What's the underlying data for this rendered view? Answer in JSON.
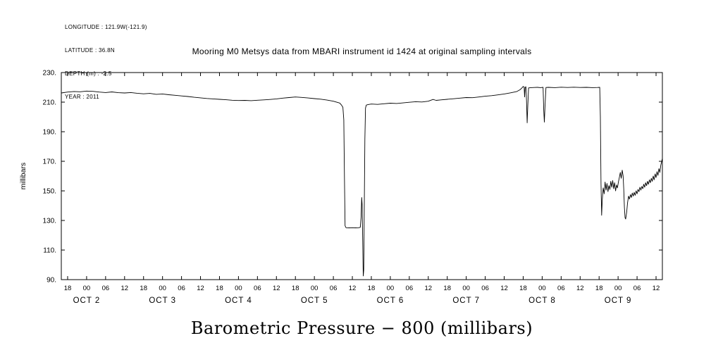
{
  "page": {
    "background": "#ffffff",
    "foreground": "#000000"
  },
  "metadata": {
    "lines": [
      "LONGITUDE : 121.9W(-121.9)",
      "LATITUDE : 36.8N",
      "DEPTH (m) : -2.5",
      "YEAR : 2011"
    ]
  },
  "title": "Mooring M0 Metsys data from MBARI instrument id 1424 at original sampling intervals",
  "chart_data": {
    "type": "line",
    "title": "Mooring M0 Metsys data from MBARI instrument id 1424 at original sampling intervals",
    "bottom_title": "Barometric Pressure − 800 (millibars)",
    "ylabel": "millibars",
    "x_unit": "hours since OCT 1 2011 16:00",
    "xlim": [
      0,
      190
    ],
    "ylim": [
      90,
      230
    ],
    "grid": false,
    "legend": null,
    "axis_color": "#000000",
    "line_color": "#000000",
    "y_ticks": [
      {
        "v": 90,
        "label": "90."
      },
      {
        "v": 110,
        "label": "110."
      },
      {
        "v": 130,
        "label": "130."
      },
      {
        "v": 150,
        "label": "150."
      },
      {
        "v": 170,
        "label": "170."
      },
      {
        "v": 190,
        "label": "190."
      },
      {
        "v": 210,
        "label": "210."
      },
      {
        "v": 230,
        "label": "230."
      }
    ],
    "x_ticks": [
      {
        "t": 2,
        "label": "18"
      },
      {
        "t": 8,
        "label": "00"
      },
      {
        "t": 14,
        "label": "06"
      },
      {
        "t": 20,
        "label": "12"
      },
      {
        "t": 26,
        "label": "18"
      },
      {
        "t": 32,
        "label": "00"
      },
      {
        "t": 38,
        "label": "06"
      },
      {
        "t": 44,
        "label": "12"
      },
      {
        "t": 50,
        "label": "18"
      },
      {
        "t": 56,
        "label": "00"
      },
      {
        "t": 62,
        "label": "06"
      },
      {
        "t": 68,
        "label": "12"
      },
      {
        "t": 74,
        "label": "18"
      },
      {
        "t": 80,
        "label": "00"
      },
      {
        "t": 86,
        "label": "06"
      },
      {
        "t": 92,
        "label": "12"
      },
      {
        "t": 98,
        "label": "18"
      },
      {
        "t": 104,
        "label": "00"
      },
      {
        "t": 110,
        "label": "06"
      },
      {
        "t": 116,
        "label": "12"
      },
      {
        "t": 122,
        "label": "18"
      },
      {
        "t": 128,
        "label": "00"
      },
      {
        "t": 134,
        "label": "06"
      },
      {
        "t": 140,
        "label": "12"
      },
      {
        "t": 146,
        "label": "18"
      },
      {
        "t": 152,
        "label": "00"
      },
      {
        "t": 158,
        "label": "06"
      },
      {
        "t": 164,
        "label": "12"
      },
      {
        "t": 170,
        "label": "18"
      },
      {
        "t": 176,
        "label": "00"
      },
      {
        "t": 182,
        "label": "06"
      },
      {
        "t": 188,
        "label": "12"
      }
    ],
    "x_date_labels": [
      {
        "t": 8,
        "label": "OCT 2"
      },
      {
        "t": 32,
        "label": "OCT 3"
      },
      {
        "t": 56,
        "label": "OCT 4"
      },
      {
        "t": 80,
        "label": "OCT 5"
      },
      {
        "t": 104,
        "label": "OCT 6"
      },
      {
        "t": 128,
        "label": "OCT 7"
      },
      {
        "t": 152,
        "label": "OCT 8"
      },
      {
        "t": 176,
        "label": "OCT 9"
      }
    ],
    "series": [
      {
        "name": "barometric_pressure_minus_800",
        "points": [
          [
            0,
            216.2
          ],
          [
            2,
            216.8
          ],
          [
            4,
            217.2
          ],
          [
            6,
            217.0
          ],
          [
            8,
            217.5
          ],
          [
            10,
            217.3
          ],
          [
            12,
            216.8
          ],
          [
            14,
            216.5
          ],
          [
            16,
            216.9
          ],
          [
            18,
            216.4
          ],
          [
            20,
            216.2
          ],
          [
            22,
            216.5
          ],
          [
            24,
            216.0
          ],
          [
            26,
            215.6
          ],
          [
            28,
            215.9
          ],
          [
            30,
            215.3
          ],
          [
            32,
            215.5
          ],
          [
            34,
            215.0
          ],
          [
            36,
            214.6
          ],
          [
            38,
            214.2
          ],
          [
            40,
            213.8
          ],
          [
            42,
            213.3
          ],
          [
            44,
            212.9
          ],
          [
            46,
            212.5
          ],
          [
            48,
            212.2
          ],
          [
            50,
            211.9
          ],
          [
            52,
            211.6
          ],
          [
            54,
            211.3
          ],
          [
            56,
            211.1
          ],
          [
            58,
            211.2
          ],
          [
            60,
            211.0
          ],
          [
            62,
            211.3
          ],
          [
            64,
            211.5
          ],
          [
            66,
            211.8
          ],
          [
            68,
            212.2
          ],
          [
            70,
            212.7
          ],
          [
            72,
            213.1
          ],
          [
            74,
            213.5
          ],
          [
            76,
            213.2
          ],
          [
            78,
            212.8
          ],
          [
            80,
            212.4
          ],
          [
            82,
            212.0
          ],
          [
            84,
            211.4
          ],
          [
            86,
            210.6
          ],
          [
            88,
            209.4
          ],
          [
            88.5,
            208.2
          ],
          [
            89.0,
            206.5
          ],
          [
            89.3,
            198.0
          ],
          [
            89.5,
            160.0
          ],
          [
            89.7,
            126.5
          ],
          [
            90.0,
            125.1
          ],
          [
            91,
            125.0
          ],
          [
            92,
            125.1
          ],
          [
            93,
            125.0
          ],
          [
            94,
            125.1
          ],
          [
            94.5,
            125.4
          ],
          [
            94.75,
            132.0
          ],
          [
            94.95,
            145.5
          ],
          [
            95.1,
            141.0
          ],
          [
            95.25,
            120.0
          ],
          [
            95.45,
            92.5
          ],
          [
            95.6,
            96.5
          ],
          [
            95.75,
            135.0
          ],
          [
            95.95,
            185.0
          ],
          [
            96.15,
            206.0
          ],
          [
            96.4,
            208.0
          ],
          [
            97,
            208.4
          ],
          [
            98,
            208.7
          ],
          [
            100,
            208.5
          ],
          [
            102,
            208.9
          ],
          [
            104,
            209.3
          ],
          [
            106,
            209.1
          ],
          [
            108,
            209.5
          ],
          [
            110,
            209.9
          ],
          [
            112,
            210.3
          ],
          [
            114,
            210.1
          ],
          [
            116,
            210.6
          ],
          [
            117.5,
            211.8
          ],
          [
            118.5,
            211.2
          ],
          [
            120,
            211.5
          ],
          [
            122,
            211.9
          ],
          [
            124,
            212.3
          ],
          [
            126,
            212.7
          ],
          [
            128,
            213.1
          ],
          [
            130,
            213.0
          ],
          [
            132,
            213.5
          ],
          [
            134,
            214.0
          ],
          [
            136,
            214.4
          ],
          [
            138,
            214.9
          ],
          [
            140,
            215.5
          ],
          [
            142,
            216.3
          ],
          [
            144,
            217.2
          ],
          [
            145,
            218.4
          ],
          [
            145.6,
            219.6
          ],
          [
            146.0,
            220.6
          ],
          [
            146.3,
            220.2
          ],
          [
            146.45,
            213.5
          ],
          [
            146.6,
            220.0
          ],
          [
            146.85,
            220.4
          ],
          [
            147.05,
            211.0
          ],
          [
            147.25,
            196.0
          ],
          [
            147.45,
            207.5
          ],
          [
            147.7,
            219.6
          ],
          [
            148.5,
            219.8
          ],
          [
            149.5,
            219.9
          ],
          [
            150.5,
            220.0
          ],
          [
            151.5,
            219.8
          ],
          [
            152.3,
            220.0
          ],
          [
            152.5,
            205.0
          ],
          [
            152.7,
            196.5
          ],
          [
            152.9,
            207.0
          ],
          [
            153.2,
            219.9
          ],
          [
            154,
            220.0
          ],
          [
            156,
            219.8
          ],
          [
            158,
            220.1
          ],
          [
            160,
            219.9
          ],
          [
            162,
            220.1
          ],
          [
            164,
            219.9
          ],
          [
            166,
            220.0
          ],
          [
            168,
            219.8
          ],
          [
            169.5,
            219.9
          ],
          [
            170.2,
            220.0
          ],
          [
            170.4,
            200.0
          ],
          [
            170.6,
            155.0
          ],
          [
            170.8,
            133.5
          ],
          [
            171.0,
            144.0
          ],
          [
            171.3,
            152.0
          ],
          [
            171.6,
            148.0
          ],
          [
            171.9,
            156.0
          ],
          [
            172.2,
            150.5
          ],
          [
            172.5,
            155.0
          ],
          [
            172.8,
            149.5
          ],
          [
            173.1,
            153.5
          ],
          [
            173.4,
            151.0
          ],
          [
            173.7,
            156.5
          ],
          [
            174.0,
            152.5
          ],
          [
            174.3,
            157.0
          ],
          [
            174.6,
            151.5
          ],
          [
            174.9,
            155.5
          ],
          [
            175.2,
            150.0
          ],
          [
            175.5,
            154.0
          ],
          [
            175.8,
            152.0
          ],
          [
            176.1,
            156.0
          ],
          [
            176.4,
            159.0
          ],
          [
            176.7,
            162.5
          ],
          [
            177.0,
            158.5
          ],
          [
            177.3,
            164.0
          ],
          [
            177.6,
            160.0
          ],
          [
            177.8,
            151.0
          ],
          [
            178.0,
            139.0
          ],
          [
            178.2,
            132.0
          ],
          [
            178.4,
            131.0
          ],
          [
            178.7,
            135.5
          ],
          [
            179.0,
            142.0
          ],
          [
            179.3,
            146.5
          ],
          [
            179.6,
            144.5
          ],
          [
            179.9,
            147.5
          ],
          [
            180.2,
            145.5
          ],
          [
            180.5,
            148.5
          ],
          [
            180.8,
            146.5
          ],
          [
            181.1,
            149.0
          ],
          [
            181.4,
            147.0
          ],
          [
            181.7,
            150.0
          ],
          [
            182.0,
            148.0
          ],
          [
            182.3,
            151.0
          ],
          [
            182.6,
            149.5
          ],
          [
            182.9,
            152.5
          ],
          [
            183.2,
            150.5
          ],
          [
            183.5,
            153.0
          ],
          [
            183.8,
            151.5
          ],
          [
            184.1,
            154.5
          ],
          [
            184.4,
            152.5
          ],
          [
            184.7,
            155.5
          ],
          [
            185.0,
            153.5
          ],
          [
            185.3,
            156.5
          ],
          [
            185.6,
            154.5
          ],
          [
            185.9,
            157.5
          ],
          [
            186.2,
            155.5
          ],
          [
            186.5,
            158.5
          ],
          [
            186.8,
            156.5
          ],
          [
            187.1,
            160.0
          ],
          [
            187.4,
            157.5
          ],
          [
            187.7,
            161.5
          ],
          [
            188.0,
            159.0
          ],
          [
            188.3,
            163.0
          ],
          [
            188.6,
            160.5
          ],
          [
            188.9,
            165.0
          ],
          [
            189.2,
            162.5
          ],
          [
            189.5,
            167.5
          ],
          [
            189.8,
            170.0
          ],
          [
            190,
            172.0
          ]
        ]
      }
    ]
  }
}
